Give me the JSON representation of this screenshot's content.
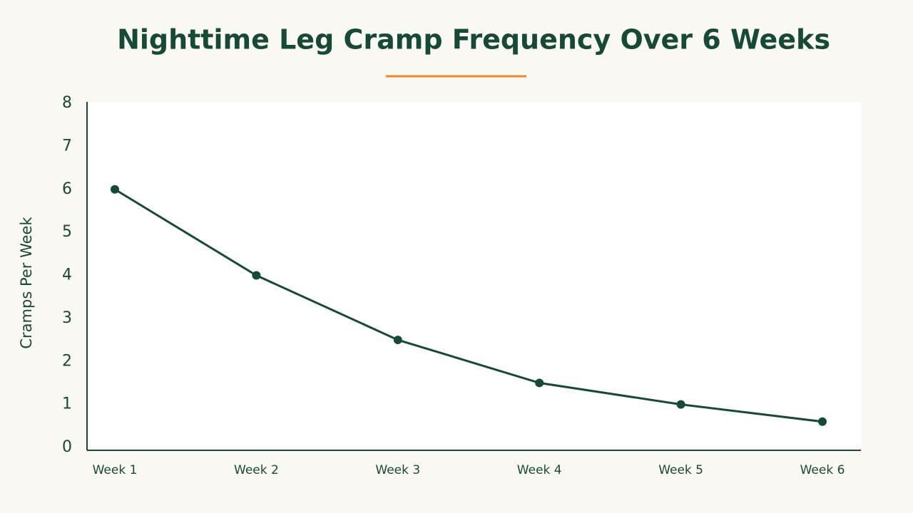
{
  "chart_data": {
    "type": "line",
    "title": "Nighttime Leg Cramp Frequency Over 6 Weeks",
    "y_label": "Cramps Per Week",
    "categories": [
      "Week 1",
      "Week 2",
      "Week 3",
      "Week 4",
      "Week 5",
      "Week 6"
    ],
    "series": [
      {
        "name": "Cramps Per Week",
        "color": "#174a36",
        "values": [
          6,
          4,
          2.5,
          1.5,
          1,
          0.6
        ]
      }
    ],
    "ylim": [
      0,
      8
    ],
    "yticks": [
      0,
      1,
      2,
      3,
      4,
      5,
      6,
      7,
      8
    ],
    "grid": false
  }
}
